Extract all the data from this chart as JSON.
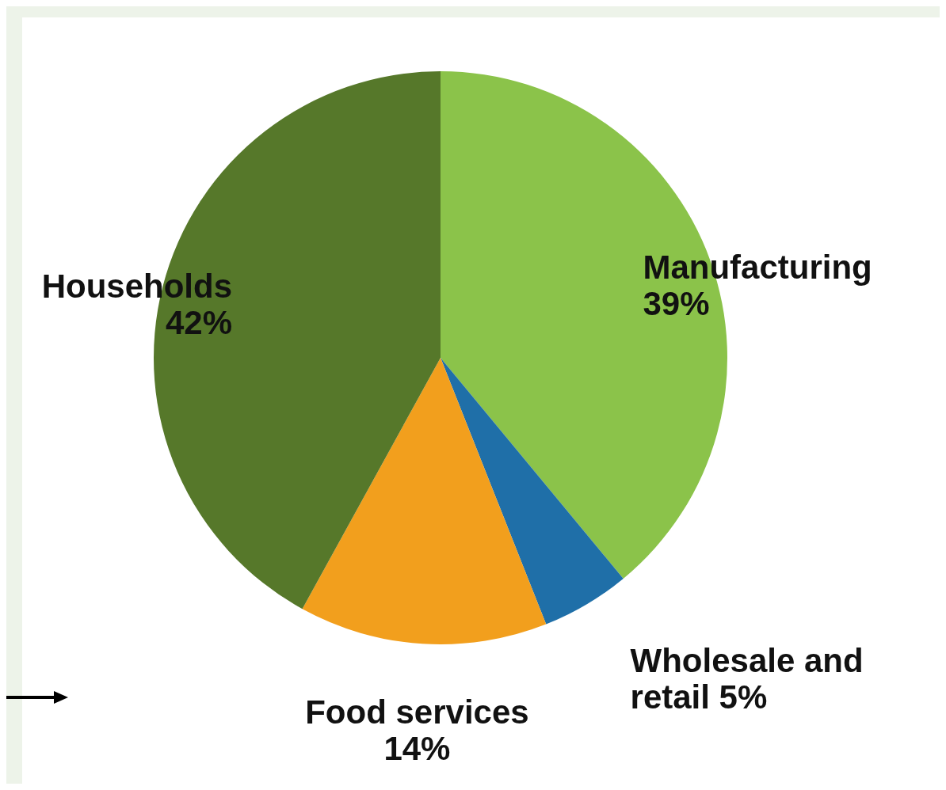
{
  "chart_data": {
    "type": "pie",
    "categories": [
      "Manufacturing",
      "Wholesale and retail",
      "Food services",
      "Households"
    ],
    "values": [
      39,
      5,
      14,
      42
    ],
    "colors": [
      "#8bc34a",
      "#1f6fa8",
      "#f29f1d",
      "#56782a"
    ],
    "value_labels": [
      "39%",
      "5%",
      "14%",
      "42%"
    ],
    "legend": false
  }
}
